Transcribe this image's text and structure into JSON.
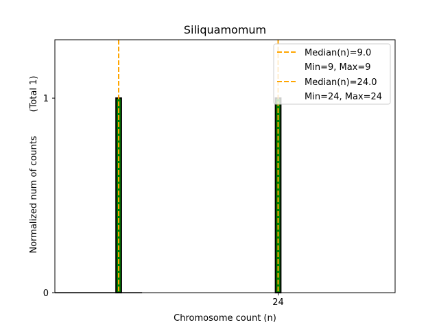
{
  "chart_data": {
    "type": "bar",
    "title": "Siliquamomum",
    "xlabel": "Chromosome count (n)",
    "ylabel": "Normalized num of counts",
    "ylabel_total": "(Total 1)",
    "xlim": [
      3.0,
      35.0
    ],
    "ylim": [
      0,
      1.3
    ],
    "x_ticks": [
      24
    ],
    "x_tick_labels": [
      "24"
    ],
    "y_ticks": [
      0,
      1
    ],
    "y_tick_labels": [
      "0",
      "1"
    ],
    "bars": [
      {
        "x": 9,
        "value": 1
      },
      {
        "x": 24,
        "value": 1
      }
    ],
    "bar_width": 0.5,
    "bar_color": "#008000",
    "bar_edge_color": "#000000",
    "median_color": "#FFA500",
    "medians": [
      {
        "x": 9,
        "label": "Median(n)=9.0",
        "range_label": "Min=9, Max=9"
      },
      {
        "x": 24,
        "label": "Median(n)=24.0",
        "range_label": "Min=24, Max=24"
      }
    ],
    "legend_position": "top-right"
  }
}
